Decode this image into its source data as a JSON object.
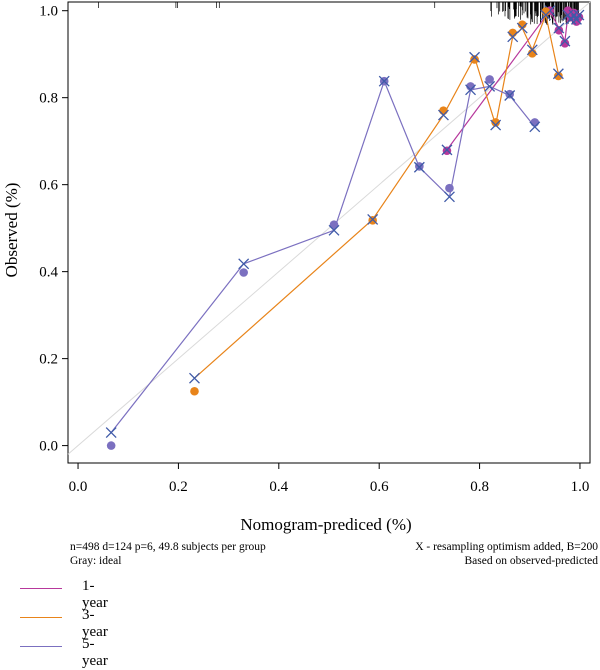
{
  "chart_data": {
    "type": "line",
    "title": "",
    "xlabel": "Nomogram-prediced (%)",
    "ylabel": "Observed (%)",
    "xlim": [
      -0.02,
      1.02
    ],
    "ylim": [
      -0.04,
      1.02
    ],
    "xticks": [
      "0.0",
      "0.2",
      "0.4",
      "0.6",
      "0.8",
      "1.0"
    ],
    "yticks": [
      "0.0",
      "0.2",
      "0.4",
      "0.6",
      "0.8",
      "1.0"
    ],
    "ideal_line": {
      "x": [
        -0.02,
        1.02
      ],
      "y": [
        -0.02,
        1.02
      ],
      "color": "#d9d9d9"
    },
    "rug": true,
    "series": [
      {
        "name": "1-year",
        "color": "#b7389c",
        "apparent": {
          "x": [
            0.735,
            0.94,
            0.958,
            0.97,
            0.976,
            0.982,
            0.988,
            0.993,
            0.998
          ],
          "y": [
            0.678,
            1.0,
            0.955,
            0.925,
            1.0,
            0.985,
            0.995,
            0.975,
            0.985
          ]
        },
        "corrected": {
          "x": [
            0.735,
            0.94,
            0.958,
            0.97,
            0.976,
            0.982,
            0.988,
            0.993,
            0.998
          ],
          "y": [
            0.68,
            1.0,
            0.96,
            0.93,
            0.99,
            0.98,
            0.99,
            0.98,
            0.99
          ]
        }
      },
      {
        "name": "3-year",
        "color": "#e8841a",
        "apparent": {
          "x": [
            0.232,
            0.587,
            0.728,
            0.79,
            0.832,
            0.866,
            0.885,
            0.905,
            0.932,
            0.957
          ],
          "y": [
            0.125,
            0.518,
            0.77,
            0.888,
            0.743,
            0.949,
            0.968,
            0.902,
            0.998,
            0.85
          ]
        },
        "corrected": {
          "x": [
            0.232,
            0.587,
            0.728,
            0.79,
            0.832,
            0.866,
            0.885,
            0.905,
            0.932,
            0.957
          ],
          "y": [
            0.155,
            0.52,
            0.76,
            0.893,
            0.737,
            0.94,
            0.96,
            0.91,
            0.99,
            0.855
          ]
        }
      },
      {
        "name": "5-year",
        "color": "#7b70c0",
        "apparent": {
          "x": [
            0.066,
            0.33,
            0.51,
            0.61,
            0.68,
            0.74,
            0.782,
            0.82,
            0.86,
            0.91
          ],
          "y": [
            0.0,
            0.398,
            0.508,
            0.838,
            0.642,
            0.592,
            0.826,
            0.842,
            0.808,
            0.743
          ]
        },
        "corrected": {
          "x": [
            0.066,
            0.33,
            0.51,
            0.61,
            0.68,
            0.74,
            0.782,
            0.82,
            0.86,
            0.91
          ],
          "y": [
            0.03,
            0.418,
            0.495,
            0.838,
            0.64,
            0.572,
            0.818,
            0.826,
            0.805,
            0.733
          ]
        }
      }
    ]
  },
  "footnotes": {
    "left_line1": "n=498 d=124 p=6, 49.8 subjects per group",
    "left_line2": "Gray: ideal",
    "right_line1": "X - resampling optimism added, B=200",
    "right_line2": "Based on observed-predicted"
  },
  "legend": [
    {
      "label": "1-year",
      "color": "#b7389c"
    },
    {
      "label": "3-year",
      "color": "#e8841a"
    },
    {
      "label": "5-year",
      "color": "#7b70c0"
    }
  ]
}
